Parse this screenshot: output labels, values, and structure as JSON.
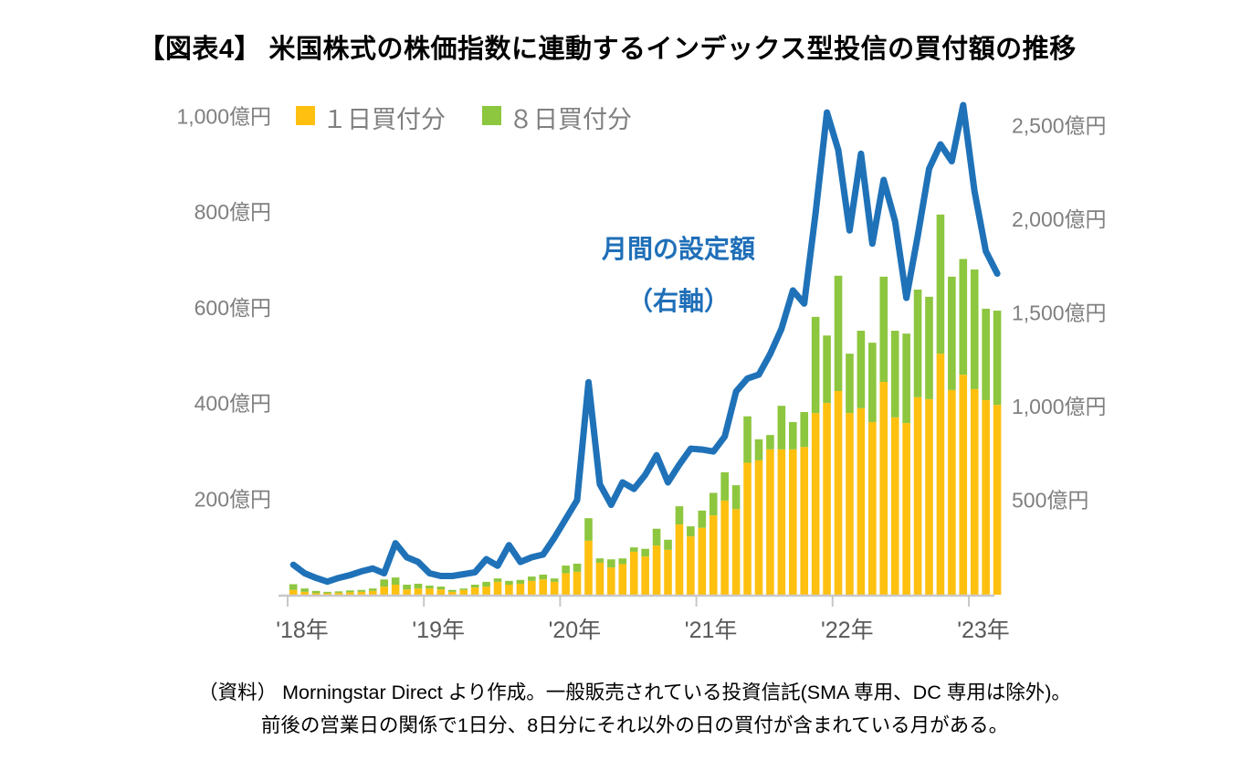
{
  "page": {
    "title": "【図表4】 米国株式の株価指数に連動するインデックス型投信の買付額の推移",
    "background": "#ffffff"
  },
  "legend": {
    "items": [
      {
        "key": "one_day_purchase",
        "label": "１日買付分",
        "color": "#FFC010"
      },
      {
        "key": "eight_day_purchase",
        "label": "８日買付分",
        "color": "#8DC63F"
      }
    ]
  },
  "annotation": {
    "line1": "月間の設定額",
    "line2": "（右軸）",
    "color": "#1f6fb8"
  },
  "footnote": {
    "line1": "（資料） Morningstar Direct より作成。一般販売されている投資信託(SMA 専用、DC 専用は除外)。",
    "line2": "前後の営業日の関係で1日分、8日分にそれ以外の日の買付が含まれている月がある。"
  },
  "chart_data": {
    "type": "combo_stacked_bar_line",
    "unit": "億円",
    "title": "米国株式の株価指数に連動するインデックス型投信の買付額の推移",
    "months": [
      "2018-01",
      "2018-02",
      "2018-03",
      "2018-04",
      "2018-05",
      "2018-06",
      "2018-07",
      "2018-08",
      "2018-09",
      "2018-10",
      "2018-11",
      "2018-12",
      "2019-01",
      "2019-02",
      "2019-03",
      "2019-04",
      "2019-05",
      "2019-06",
      "2019-07",
      "2019-08",
      "2019-09",
      "2019-10",
      "2019-11",
      "2019-12",
      "2020-01",
      "2020-02",
      "2020-03",
      "2020-04",
      "2020-05",
      "2020-06",
      "2020-07",
      "2020-08",
      "2020-09",
      "2020-10",
      "2020-11",
      "2020-12",
      "2021-01",
      "2021-02",
      "2021-03",
      "2021-04",
      "2021-05",
      "2021-06",
      "2021-07",
      "2021-08",
      "2021-09",
      "2021-10",
      "2021-11",
      "2021-12",
      "2022-01",
      "2022-02",
      "2022-03",
      "2022-04",
      "2022-05",
      "2022-06",
      "2022-07",
      "2022-08",
      "2022-09",
      "2022-10",
      "2022-11",
      "2022-12",
      "2023-01",
      "2023-02",
      "2023-03"
    ],
    "series": [
      {
        "name": "１日買付分",
        "type": "bar",
        "stack": "purchase",
        "axis": "left",
        "color": "#FFC010",
        "values": [
          10,
          6,
          3,
          3,
          4,
          5,
          6,
          8,
          17,
          21,
          11,
          13,
          13,
          11,
          6,
          10,
          15,
          17,
          27,
          21,
          23,
          29,
          32,
          27,
          45,
          48,
          113,
          67,
          57,
          64,
          90,
          80,
          103,
          94,
          147,
          122,
          140,
          166,
          197,
          179,
          276,
          281,
          304,
          304,
          304,
          309,
          380,
          401,
          426,
          380,
          390,
          361,
          445,
          371,
          359,
          413,
          409,
          504,
          428,
          460,
          430,
          407,
          397
        ]
      },
      {
        "name": "８日買付分",
        "type": "bar",
        "stack": "purchase",
        "axis": "left",
        "color": "#8DC63F",
        "values": [
          12,
          7,
          5,
          3,
          3,
          4,
          4,
          5,
          15,
          15,
          10,
          10,
          6,
          6,
          4,
          3,
          6,
          10,
          7,
          8,
          8,
          9,
          10,
          7,
          16,
          17,
          47,
          9,
          17,
          12,
          9,
          16,
          35,
          21,
          38,
          21,
          36,
          47,
          59,
          50,
          97,
          44,
          30,
          91,
          57,
          73,
          201,
          141,
          241,
          124,
          162,
          166,
          220,
          181,
          187,
          225,
          214,
          291,
          237,
          242,
          250,
          191,
          197
        ]
      },
      {
        "name": "月間の設定額（右軸）",
        "type": "line",
        "axis": "right",
        "color": "#1F72B8",
        "values": [
          155,
          110,
          85,
          65,
          85,
          100,
          120,
          135,
          110,
          270,
          195,
          170,
          110,
          95,
          95,
          105,
          115,
          185,
          150,
          260,
          170,
          195,
          210,
          300,
          400,
          500,
          1130,
          585,
          475,
          595,
          560,
          635,
          740,
          595,
          690,
          775,
          770,
          760,
          840,
          1080,
          1150,
          1170,
          1280,
          1415,
          1620,
          1550,
          2030,
          2570,
          2370,
          1940,
          2350,
          1870,
          2210,
          1990,
          1580,
          1910,
          2270,
          2400,
          2310,
          2610,
          2150,
          1830,
          1710
        ]
      }
    ],
    "left_axis": {
      "title": "",
      "ticks": [
        {
          "label": "1,000億円",
          "value": 1000
        },
        {
          "label": "800億円",
          "value": 800
        },
        {
          "label": "600億円",
          "value": 600
        },
        {
          "label": "400億円",
          "value": 400
        },
        {
          "label": "200億円",
          "value": 200
        }
      ],
      "range": [
        0,
        1050
      ]
    },
    "right_axis": {
      "title": "",
      "ticks": [
        {
          "label": "2,500億円",
          "value": 2500
        },
        {
          "label": "2,000億円",
          "value": 2000
        },
        {
          "label": "1,500億円",
          "value": 1500
        },
        {
          "label": "1,000億円",
          "value": 1000
        },
        {
          "label": "500億円",
          "value": 500
        }
      ],
      "range": [
        0,
        2700
      ]
    },
    "x_axis": {
      "ticks": [
        "'18年",
        "'19年",
        "'20年",
        "'21年",
        "'22年",
        "'23年"
      ]
    },
    "grid": false,
    "legend_position": "top-left-inside"
  }
}
